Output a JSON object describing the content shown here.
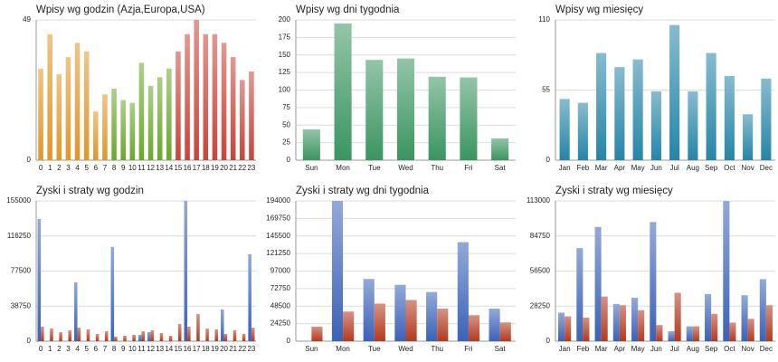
{
  "chart_data": [
    {
      "type": "bar",
      "title": "Wpisy wg godzin (Azja,Europa,USA)",
      "categories": [
        "0",
        "1",
        "2",
        "3",
        "4",
        "5",
        "6",
        "7",
        "8",
        "9",
        "10",
        "11",
        "12",
        "13",
        "14",
        "15",
        "16",
        "17",
        "18",
        "19",
        "20",
        "21",
        "22",
        "23"
      ],
      "values": [
        32,
        44,
        30,
        36,
        41,
        38,
        17,
        23,
        25,
        21,
        20,
        34,
        26,
        29,
        32,
        38,
        44,
        49,
        44,
        44,
        41,
        36,
        28,
        31
      ],
      "colors": [
        "#e0962a",
        "#e0962a",
        "#e0962a",
        "#e0962a",
        "#e0962a",
        "#e0962a",
        "#e0962a",
        "#e0962a",
        "#6aa82a",
        "#6aa82a",
        "#6aa82a",
        "#6aa82a",
        "#6aa82a",
        "#6aa82a",
        "#6aa82a",
        "#c8443a",
        "#c8443a",
        "#c8443a",
        "#c8443a",
        "#c8443a",
        "#c8443a",
        "#c8443a",
        "#c8443a",
        "#c8443a"
      ],
      "ylim": [
        0,
        49
      ],
      "yticks": [
        0,
        49
      ],
      "grid": true
    },
    {
      "type": "bar",
      "title": "Wpisy wg dni tygodnia",
      "categories": [
        "Sun",
        "Mon",
        "Tue",
        "Wed",
        "Thu",
        "Fri",
        "Sat"
      ],
      "values": [
        44,
        195,
        143,
        145,
        119,
        118,
        31
      ],
      "color": "#3a9560",
      "ylim": [
        0,
        200
      ],
      "yticks": [
        0,
        25,
        50,
        75,
        100,
        125,
        150,
        175,
        200
      ],
      "grid": true
    },
    {
      "type": "bar",
      "title": "Wpisy wg miesięcy",
      "categories": [
        "Jan",
        "Feb",
        "Mar",
        "Apr",
        "May",
        "Jun",
        "Jul",
        "Aug",
        "Sep",
        "Oct",
        "Nov",
        "Dec"
      ],
      "values": [
        48,
        45,
        84,
        73,
        79,
        54,
        106,
        54,
        84,
        66,
        36,
        64
      ],
      "color": "#2585a8",
      "ylim": [
        0,
        110
      ],
      "yticks": [
        0,
        55,
        110
      ],
      "grid": true
    },
    {
      "type": "grouped_bar",
      "title": "Zyski i straty wg godzin",
      "categories": [
        "0",
        "1",
        "2",
        "3",
        "4",
        "5",
        "6",
        "7",
        "8",
        "9",
        "10",
        "11",
        "12",
        "13",
        "14",
        "15",
        "16",
        "17",
        "18",
        "19",
        "20",
        "21",
        "22",
        "23"
      ],
      "series": [
        {
          "color": "#3b62b8",
          "values": [
            135000,
            0,
            0,
            0,
            65000,
            0,
            0,
            0,
            104000,
            0,
            0,
            7000,
            10000,
            0,
            0,
            0,
            155000,
            0,
            0,
            0,
            35000,
            0,
            0,
            96000
          ]
        },
        {
          "color": "#b33a1e",
          "values": [
            16000,
            14000,
            10000,
            12000,
            15000,
            13000,
            8000,
            11000,
            5000,
            6000,
            7000,
            11000,
            12000,
            9000,
            6000,
            19000,
            16000,
            30000,
            14000,
            13000,
            8000,
            12000,
            8000,
            15000
          ]
        }
      ],
      "ylim": [
        0,
        155000
      ],
      "yticks": [
        0,
        38750,
        77500,
        116250,
        155000
      ],
      "grid": true
    },
    {
      "type": "grouped_bar",
      "title": "Zyski i straty wg dni tygodnia",
      "categories": [
        "Sun",
        "Mon",
        "Tue",
        "Wed",
        "Thu",
        "Fri",
        "Sat"
      ],
      "series": [
        {
          "color": "#3b62b8",
          "values": [
            0,
            194000,
            86000,
            78000,
            68000,
            137000,
            45000
          ]
        },
        {
          "color": "#b33a1e",
          "values": [
            20000,
            41000,
            52000,
            57000,
            45000,
            36000,
            26000
          ]
        }
      ],
      "ylim": [
        0,
        194000
      ],
      "yticks": [
        0,
        24250,
        48500,
        72750,
        97000,
        121250,
        145500,
        169750,
        194000
      ],
      "grid": true
    },
    {
      "type": "grouped_bar",
      "title": "Zyski i straty wg miesięcy",
      "categories": [
        "Jan",
        "Feb",
        "Mar",
        "Apr",
        "May",
        "Jun",
        "Jul",
        "Aug",
        "Sep",
        "Oct",
        "Nov",
        "Dec"
      ],
      "series": [
        {
          "color": "#3b62b8",
          "values": [
            23000,
            75000,
            92000,
            30000,
            35000,
            96000,
            8000,
            12000,
            38000,
            113000,
            37000,
            50000
          ]
        },
        {
          "color": "#b33a1e",
          "values": [
            20000,
            19000,
            36000,
            29000,
            25000,
            13000,
            39000,
            12000,
            22000,
            15000,
            18000,
            29000
          ]
        }
      ],
      "ylim": [
        0,
        113000
      ],
      "yticks": [
        0,
        28250,
        56500,
        84750,
        113000
      ],
      "grid": true
    }
  ]
}
